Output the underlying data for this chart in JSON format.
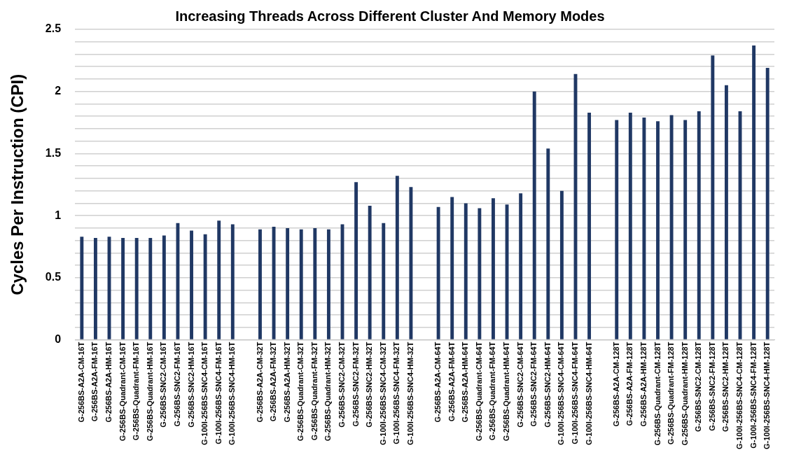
{
  "chart_data": {
    "type": "bar",
    "title": "Increasing Threads Across Different Cluster And Memory Modes",
    "ylabel": "Cycles Per Instruction (CPI)",
    "categories": [
      "G-256BS-A2A-CM-16T",
      "G-256BS-A2A-FM-16T",
      "G-256BS-A2A-HM-16T",
      "G-256BS-Quadrant-CM-16T",
      "G-256BS-Quadrant-FM-16T",
      "G-256BS-Quadrant-HM-16T",
      "G-256BS-SNC2-CM-16T",
      "G-256BS-SNC2-FM-16T",
      "G-256BS-SNC2-HM-16T",
      "G-100I-256BS-SNC4-CM-16T",
      "G-100I-256BS-SNC4-FM-16T",
      "G-100I-256BS-SNC4-HM-16T",
      null,
      "G-256BS-A2A-CM-32T",
      "G-256BS-A2A-FM-32T",
      "G-256BS-A2A-HM-32T",
      "G-256BS-Quadrant-CM-32T",
      "G-256BS-Quadrant-FM-32T",
      "G-256BS-Quadrant-HM-32T",
      "G-256BS-SNC2-CM-32T",
      "G-256BS-SNC2-FM-32T",
      "G-256BS-SNC2-HM-32T",
      "G-100I-256BS-SNC4-CM-32T",
      "G-100I-256BS-SNC4-FM-32T",
      "G-100I-256BS-SNC4-HM-32T",
      null,
      "G-256BS-A2A-CM-64T",
      "G-256BS-A2A-FM-64T",
      "G-256BS-A2A-HM-64T",
      "G-256BS-Quadrant-CM-64T",
      "G-256BS-Quadrant-FM-64T",
      "G-256BS-Quadrant-HM-64T",
      "G-256BS-SNC2-CM-64T",
      "G-256BS-SNC2-FM-64T",
      "G-256BS-SNC2-HM-64T",
      "G-100I-256BS-SNC4-CM-64T",
      "G-100I-256BS-SNC4-FM-64T",
      "G-100I-256BS-SNC4-HM-64T",
      null,
      "G-256BS-A2A-CM-128T",
      "G-256BS-A2A-FM-128T",
      "G-256BS-A2A-HM-128T",
      "G-256BS-Quadrant-CM-128T",
      "G-256BS-Quadrant-FM-128T",
      "G-256BS-Quadrant-HM-128T",
      "G-256BS-SNC2-CM-128T",
      "G-256BS-SNC2-FM-128T",
      "G-256BS-SNC2-HM-128T",
      "G-100I-256BS-SNC4-CM-128T",
      "G-100I-256BS-SNC4-FM-128T",
      "G-100I-256BS-SNC4-HM-128T"
    ],
    "values": [
      0.83,
      0.82,
      0.83,
      0.82,
      0.82,
      0.82,
      0.84,
      0.94,
      0.88,
      0.85,
      0.96,
      0.93,
      null,
      0.89,
      0.91,
      0.9,
      0.89,
      0.9,
      0.89,
      0.93,
      1.27,
      1.08,
      0.94,
      1.32,
      1.23,
      null,
      1.07,
      1.15,
      1.1,
      1.06,
      1.14,
      1.09,
      1.18,
      2.0,
      1.54,
      1.2,
      2.14,
      1.83,
      null,
      1.77,
      1.83,
      1.79,
      1.76,
      1.81,
      1.77,
      1.84,
      2.29,
      2.05,
      1.84,
      2.37,
      2.19
    ],
    "color": "#203864",
    "ylim": [
      0,
      2.5
    ],
    "yticks": [
      0,
      {
        "value": 0.1,
        "label": null
      },
      {
        "value": 0.2,
        "label": null
      },
      {
        "value": 0.3,
        "label": null
      },
      {
        "value": 0.4,
        "label": null
      },
      0.5,
      {
        "value": 0.6,
        "label": null
      },
      {
        "value": 0.7,
        "label": null
      },
      {
        "value": 0.8,
        "label": null
      },
      {
        "value": 0.9,
        "label": null
      },
      1,
      {
        "value": 1.1,
        "label": null
      },
      {
        "value": 1.2,
        "label": null
      },
      {
        "value": 1.3,
        "label": null
      },
      {
        "value": 1.4,
        "label": null
      },
      1.5,
      {
        "value": 1.6,
        "label": null
      },
      {
        "value": 1.7,
        "label": null
      },
      {
        "value": 1.8,
        "label": null
      },
      {
        "value": 1.9,
        "label": null
      },
      2,
      {
        "value": 2.1,
        "label": null
      },
      {
        "value": 2.2,
        "label": null
      },
      {
        "value": 2.3,
        "label": null
      },
      {
        "value": 2.4,
        "label": null
      },
      2.5
    ],
    "grid": "y",
    "legend": false
  }
}
